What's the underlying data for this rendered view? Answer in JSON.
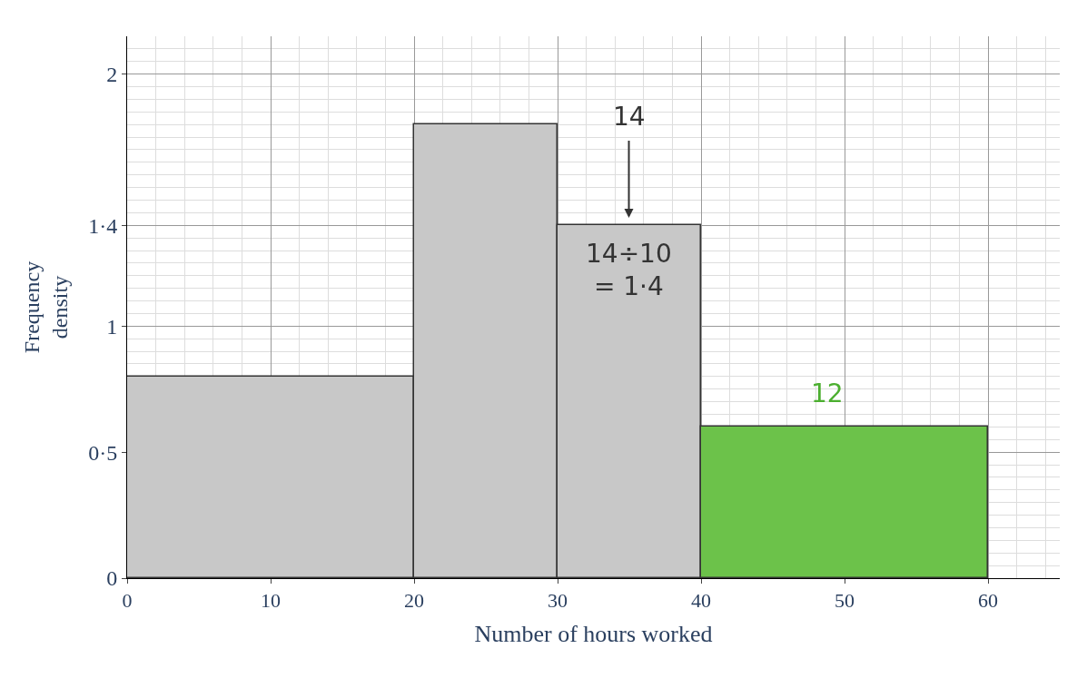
{
  "chart_data": {
    "type": "histogram",
    "xlabel": "Number of hours worked",
    "ylabel": "Frequency\ndensity",
    "bins": [
      0,
      20,
      30,
      40,
      60
    ],
    "values": [
      0.8,
      1.8,
      1.4,
      0.6
    ],
    "colors": [
      "#c8c8c8",
      "#c8c8c8",
      "#c8c8c8",
      "#6cc24a"
    ],
    "xlim": [
      0,
      65
    ],
    "ylim": [
      0,
      2.15
    ],
    "xticks": [
      0,
      10,
      20,
      30,
      40,
      50,
      60
    ],
    "yticks": [
      0,
      {
        "value": 0.5,
        "label": "0·5"
      },
      1,
      {
        "value": 1.4,
        "label": "1·4"
      },
      2
    ],
    "grid": true,
    "annotations": [
      "14",
      "14÷10\n= 1·4",
      "12"
    ]
  }
}
